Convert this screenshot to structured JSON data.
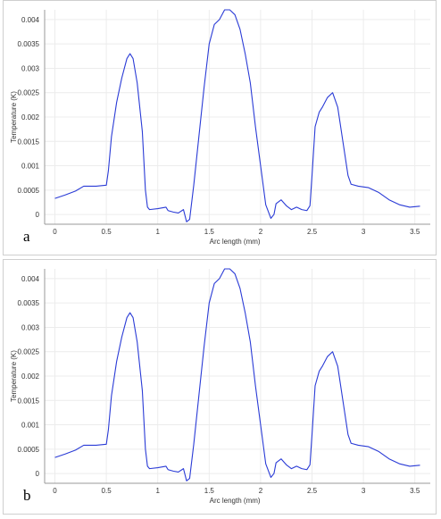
{
  "chart_data": [
    {
      "type": "line",
      "panel_letter": "a",
      "xlabel": "Arc length (mm)",
      "ylabel": "Temperature (K)",
      "xlim": [
        -0.1,
        3.65
      ],
      "ylim": [
        -0.0002,
        0.0042
      ],
      "x_ticks": [
        0,
        0.5,
        1,
        1.5,
        2,
        2.5,
        3,
        3.5
      ],
      "x_tick_labels": [
        "0",
        "0.5",
        "1",
        "1.5",
        "2",
        "2.5",
        "3",
        "3.5"
      ],
      "y_ticks": [
        0,
        0.0005,
        0.001,
        0.0015,
        0.002,
        0.0025,
        0.003,
        0.0035,
        0.004
      ],
      "y_tick_labels": [
        "0",
        "0.0005",
        "0.001",
        "0.0015",
        "0.002",
        "0.0025",
        "0.003",
        "0.0035",
        "0.004"
      ],
      "grid": true,
      "line_color": "#2a3bd6",
      "series": [
        {
          "x": [
            0,
            0.1,
            0.2,
            0.28,
            0.4,
            0.5,
            0.52,
            0.55,
            0.6,
            0.65,
            0.7,
            0.73,
            0.76,
            0.8,
            0.85,
            0.88,
            0.9,
            0.92,
            1.0,
            1.08,
            1.1,
            1.15,
            1.2,
            1.25,
            1.28,
            1.31,
            1.35,
            1.4,
            1.45,
            1.5,
            1.55,
            1.6,
            1.65,
            1.7,
            1.75,
            1.8,
            1.85,
            1.9,
            1.95,
            2.0,
            2.05,
            2.1,
            2.13,
            2.15,
            2.2,
            2.25,
            2.3,
            2.35,
            2.4,
            2.45,
            2.48,
            2.5,
            2.53,
            2.57,
            2.6,
            2.65,
            2.7,
            2.75,
            2.8,
            2.85,
            2.88,
            2.95,
            3.05,
            3.15,
            3.25,
            3.35,
            3.45,
            3.55
          ],
          "y": [
            0.00033,
            0.0004,
            0.00048,
            0.00058,
            0.00058,
            0.0006,
            0.0009,
            0.0016,
            0.0023,
            0.0028,
            0.0032,
            0.0033,
            0.0032,
            0.0027,
            0.0017,
            0.0005,
            0.00015,
            0.0001,
            0.00012,
            0.00015,
            8e-05,
            5e-05,
            3e-05,
            0.0001,
            -0.00015,
            -0.0001,
            0.0006,
            0.0016,
            0.0026,
            0.0035,
            0.0039,
            0.004,
            0.0042,
            0.0042,
            0.0041,
            0.0038,
            0.0033,
            0.0027,
            0.0018,
            0.001,
            0.0002,
            -8e-05,
            0.0,
            0.00022,
            0.0003,
            0.00018,
            0.0001,
            0.00015,
            0.0001,
            8e-05,
            0.00018,
            0.0008,
            0.0018,
            0.0021,
            0.0022,
            0.0024,
            0.0025,
            0.0022,
            0.0015,
            0.0008,
            0.00062,
            0.00058,
            0.00055,
            0.00045,
            0.0003,
            0.0002,
            0.00015,
            0.00017
          ]
        }
      ]
    },
    {
      "type": "line",
      "panel_letter": "b",
      "xlabel": "Arc length (mm)",
      "ylabel": "Temperature (K)",
      "xlim": [
        -0.1,
        3.65
      ],
      "ylim": [
        -0.0002,
        0.0042
      ],
      "x_ticks": [
        0,
        0.5,
        1,
        1.5,
        2,
        2.5,
        3,
        3.5
      ],
      "x_tick_labels": [
        "0",
        "0.5",
        "1",
        "1.5",
        "2",
        "2.5",
        "3",
        "3.5"
      ],
      "y_ticks": [
        0,
        0.0005,
        0.001,
        0.0015,
        0.002,
        0.0025,
        0.003,
        0.0035,
        0.004
      ],
      "y_tick_labels": [
        "0",
        "0.0005",
        "0.001",
        "0.0015",
        "0.002",
        "0.0025",
        "0.003",
        "0.0035",
        "0.004"
      ],
      "grid": true,
      "line_color": "#2a3bd6",
      "series": [
        {
          "x": [
            0,
            0.1,
            0.2,
            0.28,
            0.4,
            0.5,
            0.52,
            0.55,
            0.6,
            0.65,
            0.7,
            0.73,
            0.76,
            0.8,
            0.85,
            0.88,
            0.9,
            0.92,
            1.0,
            1.08,
            1.1,
            1.15,
            1.2,
            1.25,
            1.28,
            1.31,
            1.35,
            1.4,
            1.45,
            1.5,
            1.55,
            1.6,
            1.65,
            1.7,
            1.75,
            1.8,
            1.85,
            1.9,
            1.95,
            2.0,
            2.05,
            2.1,
            2.13,
            2.15,
            2.2,
            2.25,
            2.3,
            2.35,
            2.4,
            2.45,
            2.48,
            2.5,
            2.53,
            2.57,
            2.6,
            2.65,
            2.7,
            2.75,
            2.8,
            2.85,
            2.88,
            2.95,
            3.05,
            3.15,
            3.25,
            3.35,
            3.45,
            3.55
          ],
          "y": [
            0.00033,
            0.0004,
            0.00048,
            0.00058,
            0.00058,
            0.0006,
            0.0009,
            0.0016,
            0.0023,
            0.0028,
            0.0032,
            0.0033,
            0.0032,
            0.0027,
            0.0017,
            0.0005,
            0.00015,
            0.0001,
            0.00012,
            0.00015,
            8e-05,
            5e-05,
            3e-05,
            0.0001,
            -0.00015,
            -0.0001,
            0.0006,
            0.0016,
            0.0026,
            0.0035,
            0.0039,
            0.004,
            0.0042,
            0.0042,
            0.0041,
            0.0038,
            0.0033,
            0.0027,
            0.0018,
            0.001,
            0.0002,
            -8e-05,
            0.0,
            0.00022,
            0.0003,
            0.00018,
            0.0001,
            0.00015,
            0.0001,
            8e-05,
            0.00018,
            0.0008,
            0.0018,
            0.0021,
            0.0022,
            0.0024,
            0.0025,
            0.0022,
            0.0015,
            0.0008,
            0.00062,
            0.00058,
            0.00055,
            0.00045,
            0.0003,
            0.0002,
            0.00015,
            0.00017
          ]
        }
      ]
    }
  ]
}
